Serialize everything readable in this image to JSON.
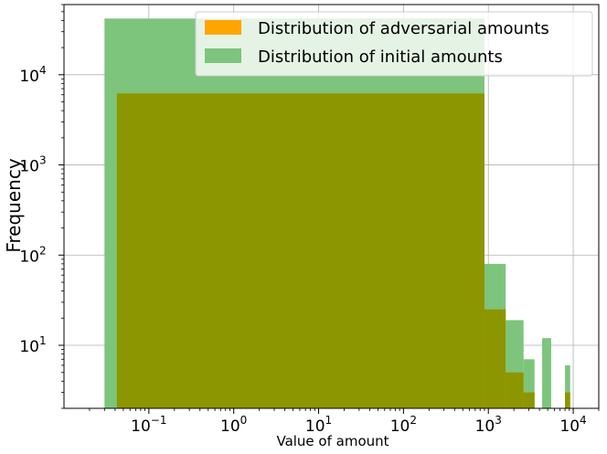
{
  "chart_data": {
    "type": "bar",
    "xlabel": "Value of amount",
    "ylabel": "Frequency",
    "x_scale": "log",
    "y_scale": "log",
    "xlim": [
      0.01,
      20000
    ],
    "ylim": [
      2,
      60000
    ],
    "grid": true,
    "legend_position": "top-right",
    "x_ticks": [
      {
        "value": 0.1,
        "base": "10",
        "exp": "−1"
      },
      {
        "value": 1,
        "base": "10",
        "exp": "0"
      },
      {
        "value": 10,
        "base": "10",
        "exp": "1"
      },
      {
        "value": 100,
        "base": "10",
        "exp": "2"
      },
      {
        "value": 1000,
        "base": "10",
        "exp": "3"
      },
      {
        "value": 10000,
        "base": "10",
        "exp": "4"
      }
    ],
    "y_ticks": [
      {
        "value": 10,
        "base": "10",
        "exp": "1"
      },
      {
        "value": 100,
        "base": "10",
        "exp": "2"
      },
      {
        "value": 1000,
        "base": "10",
        "exp": "3"
      },
      {
        "value": 10000,
        "base": "10",
        "exp": "4"
      }
    ],
    "series": [
      {
        "name": "Distribution of initial amounts",
        "color": "#7dc47d",
        "bins": [
          {
            "x0": 0.03,
            "x1": 900,
            "count": 42000
          },
          {
            "x0": 900,
            "x1": 1600,
            "count": 80
          },
          {
            "x0": 1600,
            "x1": 2600,
            "count": 19
          },
          {
            "x0": 2600,
            "x1": 3500,
            "count": 7
          },
          {
            "x0": 4300,
            "x1": 5500,
            "count": 12
          },
          {
            "x0": 8000,
            "x1": 9200,
            "count": 6
          }
        ]
      },
      {
        "name": "Distribution of adversarial amounts",
        "color": "#ffa500",
        "bins": [
          {
            "x0": 0.042,
            "x1": 900,
            "count": 6200
          },
          {
            "x0": 900,
            "x1": 1600,
            "count": 25
          },
          {
            "x0": 1600,
            "x1": 2600,
            "count": 5
          },
          {
            "x0": 2600,
            "x1": 3500,
            "count": 3
          },
          {
            "x0": 8000,
            "x1": 9200,
            "count": 3
          }
        ]
      }
    ],
    "overlap_color": "#8c9600"
  }
}
